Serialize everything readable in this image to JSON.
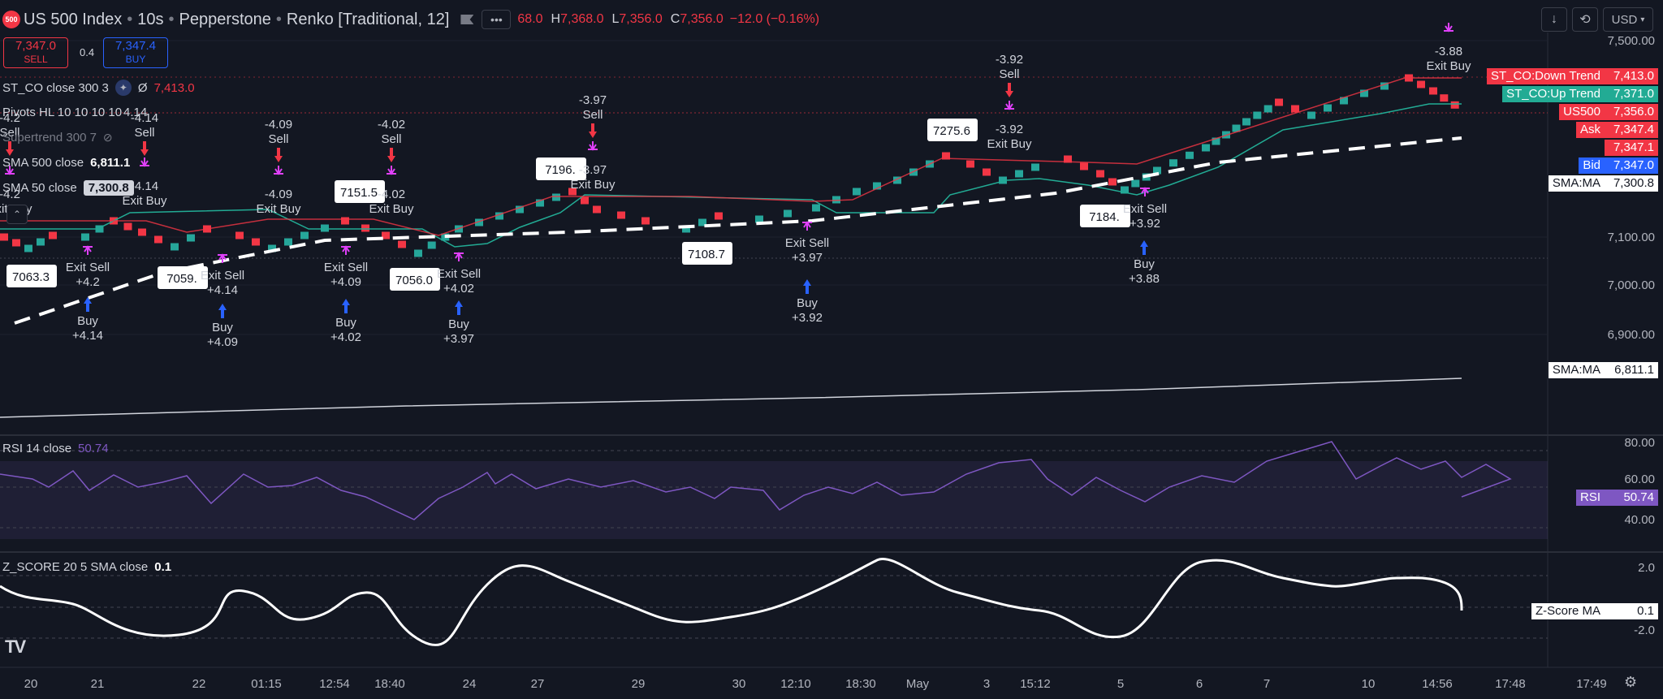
{
  "header": {
    "symbol_badge": "500",
    "symbol": "US 500 Index",
    "interval": "10s",
    "broker": "Pepperstone",
    "chart_type": "Renko [Traditional, 12]",
    "ohlc": {
      "o_value": "68.0",
      "h_label": "H",
      "h_value": "7,368.0",
      "l_label": "L",
      "l_value": "7,356.0",
      "c_label": "C",
      "c_value": "7,356.0",
      "change": "−12.0 (−0.16%)"
    },
    "currency": "USD"
  },
  "trade": {
    "sell_price": "7,347.0",
    "sell_label": "SELL",
    "spread": "0.4",
    "buy_price": "7,347.4",
    "buy_label": "BUY"
  },
  "indicators": {
    "st_co": {
      "label": "ST_CO close 300 3",
      "symbol": "Ø",
      "value": "7,413.0"
    },
    "pivots": {
      "label": "Pivots HL 10 10 10 10",
      "value": "4.14"
    },
    "supertrend": {
      "label": "Supertrend 300 7"
    },
    "sma500": {
      "label": "SMA 500 close",
      "value": "6,811.1"
    },
    "sma50": {
      "label": "SMA 50 close",
      "value": "7,300.8"
    },
    "rsi": {
      "label": "RSI 14 close",
      "value": "50.74"
    },
    "zscore": {
      "label": "Z_SCORE 20 5 SMA close",
      "value": "0.1"
    }
  },
  "price_axis": {
    "ticks": [
      "7,500.00",
      "7,100.00",
      "7,000.00",
      "6,900.00"
    ],
    "rsi_ticks": [
      "80.00",
      "60.00",
      "40.00"
    ],
    "z_ticks": [
      "2.0",
      "-2.0"
    ]
  },
  "price_labels": [
    {
      "name": "ST_CO:Down Trend",
      "value": "7,413.0",
      "name_bg": "#f23645",
      "val_bg": "#f23645",
      "color": "#ffffff"
    },
    {
      "name": "ST_CO:Up Trend",
      "value": "7,371.0",
      "name_bg": "#22ab94",
      "val_bg": "#22ab94",
      "color": "#ffffff"
    },
    {
      "name": "US500",
      "value": "7,356.0",
      "name_bg": "#f23645",
      "val_bg": "#f23645",
      "color": "#ffffff"
    },
    {
      "name": "Ask",
      "value": "7,347.4",
      "name_bg": "#f23645",
      "val_bg": "#f23645",
      "color": "#ffffff"
    },
    {
      "name": "",
      "value": "7,347.1",
      "name_bg": "transparent",
      "val_bg": "#f23645",
      "color": "#ffffff"
    },
    {
      "name": "Bid",
      "value": "7,347.0",
      "name_bg": "#2962ff",
      "val_bg": "#2962ff",
      "color": "#ffffff"
    },
    {
      "name": "SMA:MA",
      "value": "7,300.8",
      "name_bg": "#ffffff",
      "val_bg": "#ffffff",
      "color": "#131722"
    },
    {
      "name": "SMA:MA",
      "value": "6,811.1",
      "name_bg": "#ffffff",
      "val_bg": "#ffffff",
      "color": "#131722"
    },
    {
      "name": "RSI",
      "value": "50.74",
      "name_bg": "#7e57c2",
      "val_bg": "#7e57c2",
      "color": "#ffffff"
    },
    {
      "name": "Z-Score MA",
      "value": "0.1",
      "name_bg": "#ffffff",
      "val_bg": "#ffffff",
      "color": "#131722"
    }
  ],
  "pivot_labels": [
    "7063.3",
    "7059.",
    "7151.5",
    "7056.0",
    "7196.",
    "7108.7",
    "7275.6",
    "7184."
  ],
  "signals": [
    {
      "kind": "buy",
      "label": "Buy",
      "value": "+4.14"
    },
    {
      "kind": "buy",
      "label": "Buy",
      "value": "+4.09"
    },
    {
      "kind": "buy",
      "label": "Buy",
      "value": "+4.02"
    },
    {
      "kind": "buy",
      "label": "Buy",
      "value": "+3.97"
    },
    {
      "kind": "buy",
      "label": "Buy",
      "value": "+3.92"
    },
    {
      "kind": "buy",
      "label": "Buy",
      "value": "+3.88"
    },
    {
      "kind": "sell",
      "label": "Sell",
      "value": "-4.14"
    },
    {
      "kind": "sell",
      "label": "Sell",
      "value": "-4.09"
    },
    {
      "kind": "sell",
      "label": "Sell",
      "value": "-4.02"
    },
    {
      "kind": "sell",
      "label": "Sell",
      "value": "-3.97"
    },
    {
      "kind": "sell",
      "label": "Sell",
      "value": "-3.92"
    },
    {
      "kind": "sell",
      "label": "Sell",
      "value": "-4.2"
    },
    {
      "kind": "exit_sell",
      "label": "Exit Sell",
      "value": "+4.2"
    },
    {
      "kind": "exit_sell",
      "label": "Exit Sell",
      "value": "+4.14"
    },
    {
      "kind": "exit_sell",
      "label": "Exit Sell",
      "value": "+4.09"
    },
    {
      "kind": "exit_sell",
      "label": "Exit Sell",
      "value": "+4.02"
    },
    {
      "kind": "exit_sell",
      "label": "Exit Sell",
      "value": "+3.97"
    },
    {
      "kind": "exit_sell",
      "label": "Exit Sell",
      "value": "+3.92"
    },
    {
      "kind": "exit_buy",
      "label": "Exit Buy",
      "value": "-4.14"
    },
    {
      "kind": "exit_buy",
      "label": "Exit Buy",
      "value": "-4.09"
    },
    {
      "kind": "exit_buy",
      "label": "Exit Buy",
      "value": "-4.02"
    },
    {
      "kind": "exit_buy",
      "label": "Exit Buy",
      "value": "-3.97"
    },
    {
      "kind": "exit_buy",
      "label": "Exit Buy",
      "value": "-3.92"
    },
    {
      "kind": "exit_buy",
      "label": "Exit Buy",
      "value": "-3.88"
    },
    {
      "kind": "exit_buy",
      "label": "Exit Buy",
      "value": "-4.2"
    }
  ],
  "time_axis": [
    "20",
    "21",
    "22",
    "01:15",
    "12:54",
    "18:40",
    "24",
    "27",
    "29",
    "30",
    "12:10",
    "18:30",
    "May",
    "3",
    "15:12",
    "5",
    "6",
    "7",
    "10",
    "14:56",
    "17:48",
    "17:49"
  ],
  "colors": {
    "up": "#26a69a",
    "down": "#f23645",
    "accent_buy": "#2962ff",
    "rsi_line": "#7e57c2",
    "signal_marker": "#e040fb",
    "bg": "#131722"
  },
  "icons": {
    "logo": "tradingview-logo-icon",
    "settings": "gear-icon",
    "download": "download-icon",
    "fullscreen": "fullscreen-icon",
    "more": "more-icon",
    "flag": "flag-icon",
    "collapse": "chevron-up-icon",
    "hide": "eye-off-icon"
  }
}
